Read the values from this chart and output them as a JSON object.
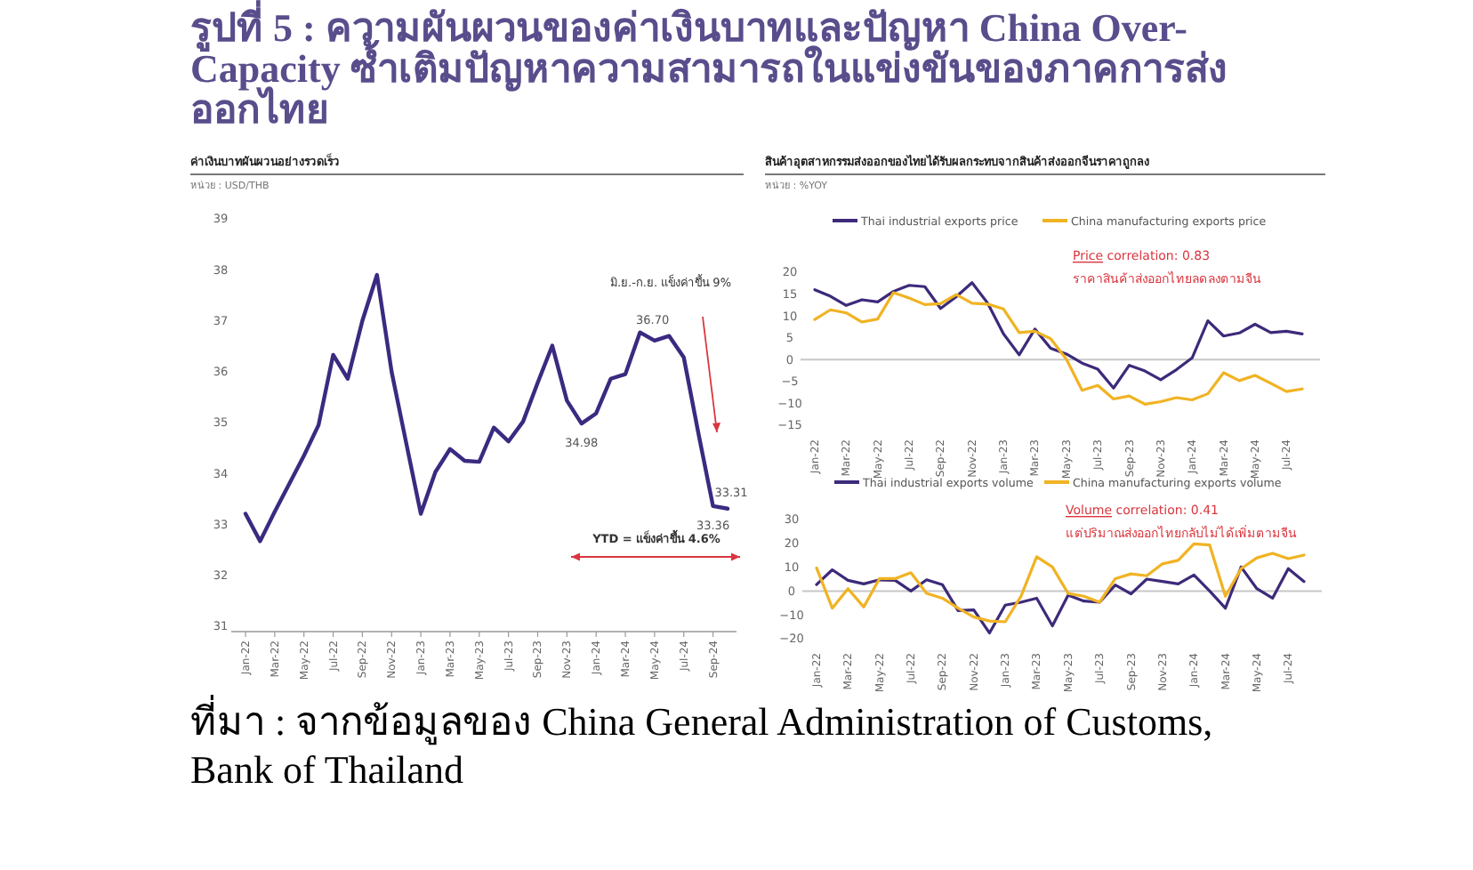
{
  "chart_data": [
    {
      "type": "line",
      "title": "รูปที่ 5 : ความผันผวนของค่าเงินบาทและปัญหา China Over-Capacity ซ้ำเติมปัญหาความสามารถในแข่งขันของภาคการส่งออกไทย",
      "subtitle": "ค่าเงินบาทผันผวนอย่างรวดเร็ว",
      "ylabel": "หน่วย : USD/THB",
      "categories": [
        "Jan-22",
        null,
        "Mar-22",
        null,
        "May-22",
        null,
        "Jul-22",
        null,
        "Sep-22",
        null,
        "Nov-22",
        null,
        "Jan-23",
        null,
        "Mar-23",
        null,
        "May-23",
        null,
        "Jul-23",
        null,
        "Sep-23",
        null,
        "Nov-23",
        null,
        "Jan-24",
        null,
        "Mar-24",
        null,
        "May-24",
        null,
        "Jul-24",
        null,
        "Sep-24",
        null
      ],
      "series": [
        {
          "color": "#3b2a80",
          "values": [
            33.21,
            32.67,
            33.25,
            33.8,
            34.35,
            34.95,
            36.33,
            35.86,
            37.0,
            37.9,
            36.0,
            34.6,
            33.21,
            34.03,
            34.48,
            34.25,
            34.23,
            34.9,
            34.63,
            35.02,
            35.78,
            36.51,
            35.43,
            34.98,
            35.18,
            35.86,
            35.95,
            36.77,
            36.61,
            36.7,
            36.28,
            34.79,
            33.36,
            33.31
          ]
        }
      ],
      "ylim": [
        31,
        39
      ],
      "yticks": [
        31,
        32,
        33,
        34,
        35,
        36,
        37,
        38,
        39
      ],
      "annotations": [
        {
          "text": "34.98",
          "y": 34.98
        },
        {
          "text": "36.70",
          "y": 36.7
        },
        {
          "text": "33.36",
          "x": "Sep-24",
          "y": 33.36
        },
        {
          "text": "33.31",
          "y": 33.31
        },
        "มิ.ย.-ก.ย. แข็งค่าขึ้น 9%",
        "YTD = แข็งค่าขึ้น 4.6%",
        "ที่มา : จากข้อมูลของ China General Administration of Customs, Bank of Thailand"
      ]
    },
    {
      "type": "line",
      "title": "สินค้าอุตสาหกรรมส่งออกของไทยได้รับผลกระทบจากสินค้าส่งออกจีนราคาถูกลง",
      "ylabel": "หน่วย : %YOY",
      "categories": [
        "Jan-22",
        null,
        "Mar-22",
        null,
        "May-22",
        null,
        "Jul-22",
        null,
        "Sep-22",
        null,
        "Nov-22",
        null,
        "Jan-23",
        null,
        "Mar-23",
        null,
        "May-23",
        null,
        "Jul-23",
        null,
        "Sep-23",
        null,
        "Nov-23",
        null,
        "Jan-24",
        null,
        "Mar-24",
        null,
        "May-24",
        null,
        "Jul-24",
        null
      ],
      "series": [
        {
          "name": "Thai industrial exports price",
          "color": "#3d2a7a",
          "values": [
            16.0,
            14.5,
            12.4,
            13.7,
            13.2,
            15.6,
            17.0,
            16.7,
            11.7,
            14.4,
            17.6,
            12.9,
            5.9,
            1.1,
            7.0,
            2.6,
            1.3,
            -0.8,
            -2.2,
            -6.5,
            -1.3,
            -2.6,
            -4.6,
            -2.3,
            0.4,
            8.9,
            5.4,
            6.1,
            8.1,
            6.2,
            6.5,
            5.9
          ]
        },
        {
          "name": "China manufacturing exports price",
          "color": "#f0b323",
          "values": [
            9.2,
            11.4,
            10.7,
            8.6,
            9.3,
            15.3,
            14.1,
            12.6,
            12.8,
            14.9,
            12.9,
            12.7,
            11.6,
            6.2,
            6.5,
            4.8,
            0.1,
            -7.0,
            -5.9,
            -9.0,
            -8.3,
            -10.2,
            -9.6,
            -8.7,
            -9.2,
            -7.8,
            -3.0,
            -4.8,
            -3.6,
            -5.4,
            -7.3,
            -6.7
          ]
        }
      ],
      "ylim": [
        -15,
        20
      ],
      "yticks": [
        -15,
        -10,
        -5,
        0,
        5,
        10,
        15,
        20
      ],
      "legend": "top",
      "ref_lines": [
        {
          "axis": "y",
          "value": 0,
          "color": "#c8c8c8"
        }
      ],
      "annotations": [
        "Price correlation: 0.83",
        "ราคาสินค้าส่งออกไทยลดลงตามจีน"
      ]
    },
    {
      "type": "line",
      "categories": [
        "Jan-22",
        null,
        "Mar-22",
        null,
        "May-22",
        null,
        "Jul-22",
        null,
        "Sep-22",
        null,
        "Nov-22",
        null,
        "Jan-23",
        null,
        "Mar-23",
        null,
        "May-23",
        null,
        "Jul-23",
        null,
        "Sep-23",
        null,
        "Nov-23",
        null,
        "Jan-24",
        null,
        "Mar-24",
        null,
        "May-24",
        null,
        "Jul-24",
        null
      ],
      "series": [
        {
          "name": "Thai industrial exports volume",
          "color": "#3d2a7a",
          "values": [
            2.7,
            8.9,
            4.5,
            3.0,
            4.7,
            4.5,
            0,
            4.7,
            2.7,
            -8.2,
            -7.9,
            -17.6,
            -5.9,
            -4.7,
            -3.0,
            -14.6,
            -1.7,
            -4.2,
            -4.7,
            2.5,
            -1.2,
            5.0,
            4.0,
            3.0,
            6.7,
            0,
            -7.2,
            10.1,
            1.0,
            -3.0,
            9.4,
            4.0
          ]
        },
        {
          "name": "China manufacturing exports volume",
          "color": "#f0b323",
          "values": [
            9.7,
            -7.2,
            1.0,
            -6.7,
            5.2,
            5.2,
            7.7,
            -1.0,
            -3.0,
            -7.2,
            -10.9,
            -12.6,
            -12.9,
            -2.2,
            14.4,
            10.1,
            -1.0,
            -2.2,
            -4.7,
            5.2,
            7.2,
            6.4,
            11.4,
            12.9,
            19.8,
            19.3,
            -2.2,
            9.4,
            13.9,
            15.8,
            13.6,
            15.1
          ]
        }
      ],
      "ylim": [
        -20,
        30
      ],
      "yticks": [
        -20,
        -10,
        0,
        10,
        20,
        30
      ],
      "legend": "top",
      "ref_lines": [
        {
          "axis": "y",
          "value": 0,
          "color": "#c8c8c8"
        }
      ],
      "annotations": [
        "Volume correlation: 0.41",
        "แต่ปริมาณส่งออกไทยกลับไม่ได้เพิ่มตามจีน"
      ]
    }
  ]
}
